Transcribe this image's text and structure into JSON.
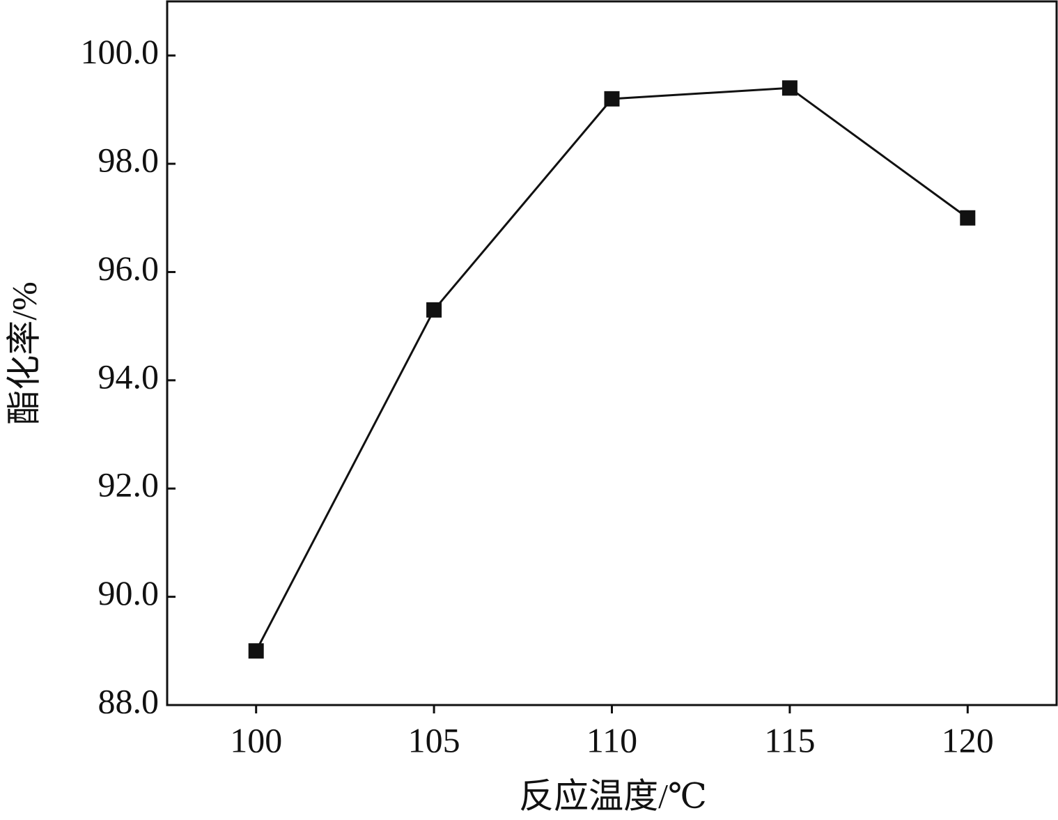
{
  "chart_data": {
    "type": "line",
    "x_label": "反应温度/℃",
    "y_label": "酯化率/%",
    "x": [
      100,
      105,
      110,
      115,
      120
    ],
    "series": [
      {
        "color": "#111111",
        "values": [
          89.0,
          95.3,
          99.2,
          99.4,
          97.0
        ]
      }
    ],
    "xlim": [
      97.5,
      122.5
    ],
    "xticks": [
      100,
      105,
      110,
      115,
      120
    ],
    "ylim": [
      88,
      101
    ],
    "yticks": [
      {
        "value": 88,
        "label": "88.0"
      },
      {
        "value": 90,
        "label": "90.0"
      },
      {
        "value": 92,
        "label": "92.0"
      },
      {
        "value": 94,
        "label": "94.0"
      },
      {
        "value": 96,
        "label": "96.0"
      },
      {
        "value": 98,
        "label": "98.0"
      },
      {
        "value": 100,
        "label": "100.0"
      }
    ],
    "grid": false
  }
}
